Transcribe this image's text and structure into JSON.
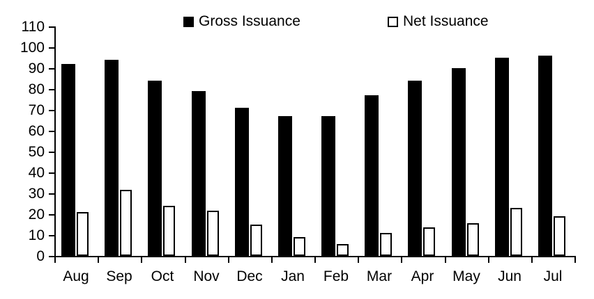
{
  "chart_data": {
    "type": "bar",
    "title": "",
    "xlabel": "",
    "ylabel": "",
    "categories": [
      "Aug",
      "Sep",
      "Oct",
      "Nov",
      "Dec",
      "Jan",
      "Feb",
      "Mar",
      "Apr",
      "May",
      "Jun",
      "Jul"
    ],
    "series": [
      {
        "name": "Gross Issuance",
        "style": "solid",
        "fill": "#000000",
        "border": "#000000",
        "values": [
          92,
          94,
          84,
          79,
          71,
          67,
          67,
          77,
          84,
          90,
          95,
          96
        ]
      },
      {
        "name": "Net Issuance",
        "style": "outlined",
        "fill": "#ffffff",
        "border": "#000000",
        "values": [
          21,
          31.5,
          24,
          21.5,
          15,
          9,
          5.5,
          11,
          13.5,
          15.5,
          23,
          19
        ]
      }
    ],
    "ylim": [
      0,
      110
    ],
    "yticks": [
      0,
      10,
      20,
      30,
      40,
      50,
      60,
      70,
      80,
      90,
      100,
      110
    ],
    "legend_position": "top",
    "grid": false,
    "axis_color": "#000000",
    "background": "#ffffff"
  }
}
